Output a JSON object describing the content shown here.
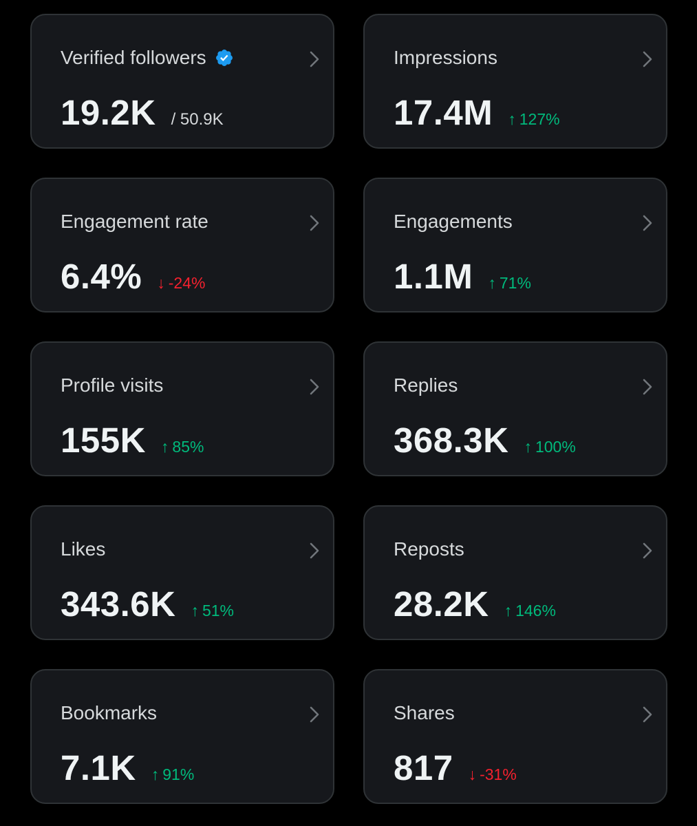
{
  "theme": {
    "background": "#000000",
    "card_background": "#16181c",
    "card_border": "#2f3336",
    "up_color": "#00ba7c",
    "down_color": "#f4212e",
    "verified_color": "#1d9bf0"
  },
  "icons": {
    "verified": "verified-badge-icon",
    "chevron": "chevron-right-icon"
  },
  "cards": [
    {
      "label": "Verified followers",
      "value": "19.2K",
      "sub": "/ 50.9K"
    },
    {
      "label": "Impressions",
      "value": "17.4M",
      "arrow": "↑",
      "change": "127%"
    },
    {
      "label": "Engagement rate",
      "value": "6.4%",
      "arrow": "↓",
      "change": "-24%"
    },
    {
      "label": "Engagements",
      "value": "1.1M",
      "arrow": "↑",
      "change": "71%"
    },
    {
      "label": "Profile visits",
      "value": "155K",
      "arrow": "↑",
      "change": "85%"
    },
    {
      "label": "Replies",
      "value": "368.3K",
      "arrow": "↑",
      "change": "100%"
    },
    {
      "label": "Likes",
      "value": "343.6K",
      "arrow": "↑",
      "change": "51%"
    },
    {
      "label": "Reposts",
      "value": "28.2K",
      "arrow": "↑",
      "change": "146%"
    },
    {
      "label": "Bookmarks",
      "value": "7.1K",
      "arrow": "↑",
      "change": "91%"
    },
    {
      "label": "Shares",
      "value": "817",
      "arrow": "↓",
      "change": "-31%"
    }
  ]
}
